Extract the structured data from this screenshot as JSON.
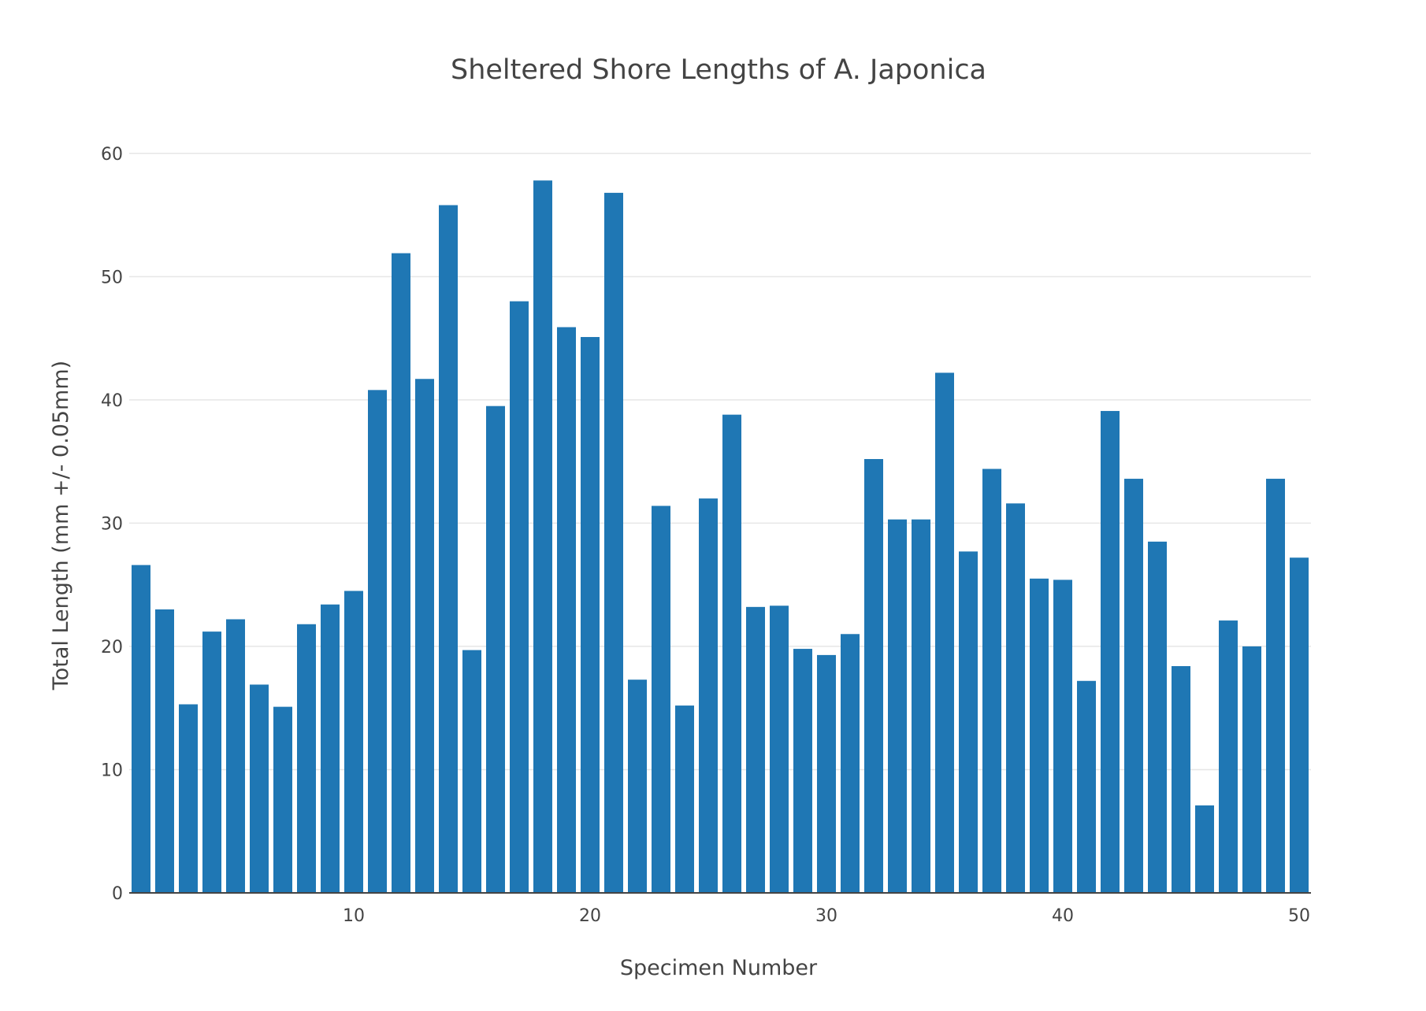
{
  "chart_data": {
    "type": "bar",
    "title": "Sheltered Shore Lengths of A. Japonica",
    "xlabel": "Specimen Number",
    "ylabel": "Total Length (mm +/- 0.05mm)",
    "x": [
      1,
      2,
      3,
      4,
      5,
      6,
      7,
      8,
      9,
      10,
      11,
      12,
      13,
      14,
      15,
      16,
      17,
      18,
      19,
      20,
      21,
      22,
      23,
      24,
      25,
      26,
      27,
      28,
      29,
      30,
      31,
      32,
      33,
      34,
      35,
      36,
      37,
      38,
      39,
      40,
      41,
      42,
      43,
      44,
      45,
      46,
      47,
      48,
      49,
      50
    ],
    "values": [
      26.6,
      23.0,
      15.3,
      21.2,
      22.2,
      16.9,
      15.1,
      21.8,
      23.4,
      24.5,
      40.8,
      51.9,
      41.7,
      55.8,
      19.7,
      39.5,
      48.0,
      57.8,
      45.9,
      45.1,
      56.8,
      17.3,
      31.4,
      15.2,
      32.0,
      38.8,
      23.2,
      23.3,
      19.8,
      19.3,
      21.0,
      35.2,
      30.3,
      30.3,
      42.2,
      27.7,
      34.4,
      31.6,
      25.5,
      25.4,
      17.2,
      39.1,
      33.6,
      28.5,
      18.4,
      7.1,
      22.1,
      20.0,
      33.6,
      27.2
    ],
    "xticks": [
      10,
      20,
      30,
      40,
      50
    ],
    "yticks": [
      0,
      10,
      20,
      30,
      40,
      50,
      60
    ],
    "xlim": [
      0.5,
      50.5
    ],
    "ylim": [
      0,
      63.5
    ],
    "grid": true,
    "bar_color": "#1f77b4",
    "grid_color": "#e6e6e6",
    "text_color": "#444444"
  }
}
